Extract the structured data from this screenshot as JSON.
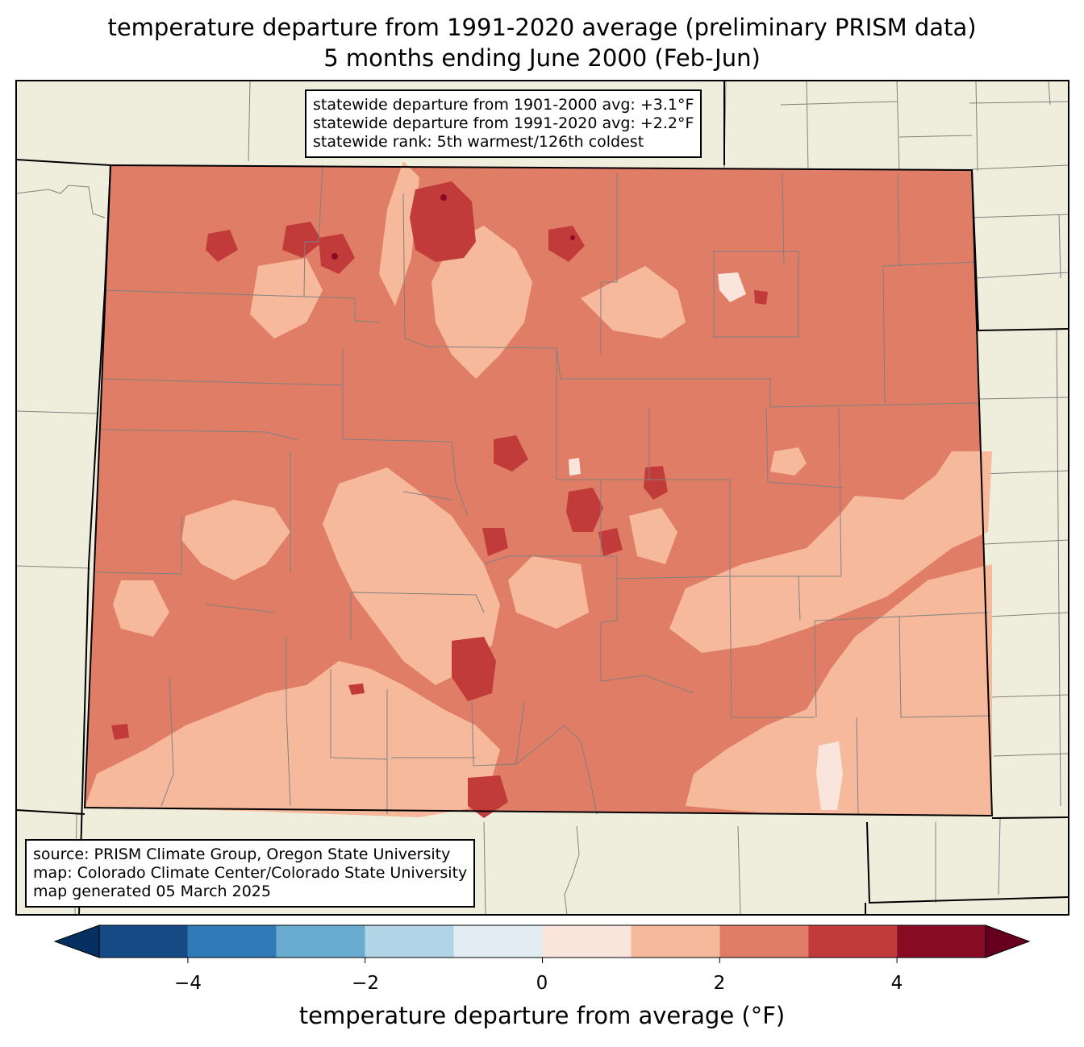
{
  "title": {
    "line1": "temperature departure from 1991-2020 average (preliminary PRISM data)",
    "line2": "5 months ending June 2000 (Feb-Jun)"
  },
  "stats": {
    "line1": "statewide departure from 1901-2000 avg: +3.1°F",
    "line2": "statewide departure from 1991-2020 avg: +2.2°F",
    "line3": "statewide rank: 5th warmest/126th coldest"
  },
  "source": {
    "line1": "source: PRISM Climate Group, Oregon State University",
    "line2": "map: Colorado Climate Center/Colorado State University",
    "line3": "map generated 05 March 2025"
  },
  "colorbar": {
    "label": "temperature departure from average (°F)",
    "ticks": [
      "−4",
      "−2",
      "0",
      "2",
      "4"
    ],
    "bins": [
      {
        "range": "<-5",
        "color": "#053061"
      },
      {
        "range": "-5 to -4",
        "color": "#154a85"
      },
      {
        "range": "-4 to -3",
        "color": "#2f7ab7"
      },
      {
        "range": "-3 to -2",
        "color": "#6aacd0"
      },
      {
        "range": "-2 to -1",
        "color": "#b2d4e7"
      },
      {
        "range": "-1 to 0",
        "color": "#e2ecf3"
      },
      {
        "range": "0 to 1",
        "color": "#f9e5db"
      },
      {
        "range": "1 to 2",
        "color": "#f6b99c"
      },
      {
        "range": "2 to 3",
        "color": "#e07d66"
      },
      {
        "range": "3 to 4",
        "color": "#c13b3b"
      },
      {
        "range": "4 to 5",
        "color": "#870b23"
      },
      {
        "range": ">5",
        "color": "#67001f"
      }
    ]
  },
  "colors": {
    "land_background": "#efeedc",
    "county_lines": "#808080",
    "state_lines": "#000000",
    "dominant": "#e07d66",
    "moderate": "#f6b99c",
    "warm_hotspot": "#c13b3b",
    "hottest": "#870b23",
    "near_average": "#f9e5db"
  }
}
